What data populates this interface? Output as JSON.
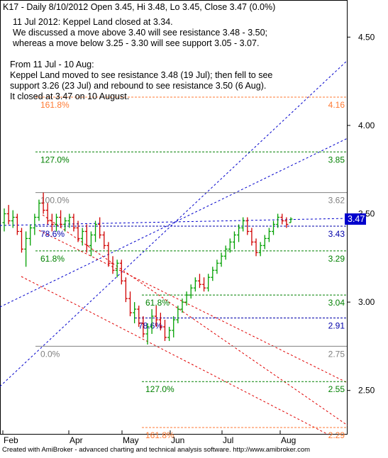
{
  "header": {
    "line": "K17 - Daily 8/10/2012 Open 3.45, Hi 3.48, Lo 3.45, Close 3.47 (0.0%)"
  },
  "notes": [
    "11 Jul 2012: Keppel Land closed at 3.34.",
    "We discussed a move above 3.40 will see resistance 3.48 - 3.50;",
    "whereas a move below 3.25 - 3.30 will see support 3.05 - 3.07.",
    "",
    "From 11 Jul - 10 Aug:",
    "Keppel Land moved to see resistance 3.48 (19 Jul); then fell to see",
    "support 3.26 (23 Jul) and rebound to see resistance 3.50 (6 Aug).",
    "It closed at 3.47 on 10 August."
  ],
  "footer": {
    "text": "Created with AmiBroker - advanced charting and technical analysis software. http://www.amibroker.com"
  },
  "colors": {
    "up": "#00a000",
    "down": "#d00000",
    "blue_channel": "#0000cc",
    "red_channel": "#e00000",
    "fib_orange": "#ff7a33",
    "fib_green": "#008000",
    "fib_blue": "#0000aa",
    "fib_gray": "#808080",
    "price_badge": "#0000cc"
  },
  "chart_data": {
    "type": "candlestick",
    "ticker": "K17",
    "y_ticks": [
      "2.50",
      "3.00",
      "3.50",
      "4.00",
      "4.50"
    ],
    "ylim": [
      2.25,
      4.71
    ],
    "x_tick_labels": [
      "Feb",
      "Apr",
      "May",
      "Jun",
      "Jul",
      "Aug"
    ],
    "last_price_label": "3.47",
    "fib_levels": [
      {
        "label": "161.8%",
        "value": 4.16,
        "value_label": "4.16",
        "color": "orange"
      },
      {
        "label": "127.0%",
        "value": 3.85,
        "value_label": "3.85",
        "color": "green"
      },
      {
        "label": "100.0%",
        "value": 3.62,
        "value_label": "3.62",
        "color": "gray"
      },
      {
        "label": "78.6%",
        "value": 3.43,
        "value_label": "3.43",
        "color": "blue"
      },
      {
        "label": "61.8%",
        "value": 3.29,
        "value_label": "3.29",
        "color": "green"
      },
      {
        "label": "61.8%",
        "value": 3.04,
        "value_label": "3.04",
        "color": "green"
      },
      {
        "label": "78.6%",
        "value": 2.91,
        "value_label": "2.91",
        "color": "blue"
      },
      {
        "label": "0.0%",
        "value": 2.75,
        "value_label": "2.75",
        "color": "gray"
      },
      {
        "label": "127.0%",
        "value": 2.55,
        "value_label": "2.55",
        "color": "green"
      },
      {
        "label": "161.8%",
        "value": 2.29,
        "value_label": "2.29",
        "color": "orange"
      }
    ],
    "ohlc": [
      [
        3.45,
        3.53,
        3.4,
        3.5
      ],
      [
        3.5,
        3.55,
        3.44,
        3.46
      ],
      [
        3.46,
        3.52,
        3.42,
        3.48
      ],
      [
        3.48,
        3.5,
        3.38,
        3.4
      ],
      [
        3.4,
        3.42,
        3.28,
        3.3
      ],
      [
        3.3,
        3.4,
        3.2,
        3.36
      ],
      [
        3.36,
        3.44,
        3.32,
        3.42
      ],
      [
        3.42,
        3.5,
        3.38,
        3.48
      ],
      [
        3.48,
        3.58,
        3.46,
        3.56
      ],
      [
        3.56,
        3.62,
        3.5,
        3.52
      ],
      [
        3.52,
        3.56,
        3.44,
        3.46
      ],
      [
        3.46,
        3.5,
        3.4,
        3.44
      ],
      [
        3.44,
        3.5,
        3.4,
        3.48
      ],
      [
        3.48,
        3.52,
        3.42,
        3.44
      ],
      [
        3.44,
        3.48,
        3.4,
        3.46
      ],
      [
        3.46,
        3.5,
        3.42,
        3.48
      ],
      [
        3.48,
        3.5,
        3.4,
        3.42
      ],
      [
        3.42,
        3.46,
        3.34,
        3.36
      ],
      [
        3.36,
        3.42,
        3.32,
        3.4
      ],
      [
        3.4,
        3.44,
        3.28,
        3.32
      ],
      [
        3.32,
        3.4,
        3.26,
        3.38
      ],
      [
        3.38,
        3.46,
        3.34,
        3.44
      ],
      [
        3.44,
        3.48,
        3.36,
        3.38
      ],
      [
        3.38,
        3.4,
        3.3,
        3.32
      ],
      [
        3.32,
        3.34,
        3.2,
        3.22
      ],
      [
        3.22,
        3.26,
        3.16,
        3.18
      ],
      [
        3.18,
        3.24,
        3.14,
        3.22
      ],
      [
        3.22,
        3.24,
        3.1,
        3.12
      ],
      [
        3.12,
        3.14,
        3.0,
        3.02
      ],
      [
        3.02,
        3.06,
        2.92,
        2.94
      ],
      [
        2.94,
        3.0,
        2.88,
        2.96
      ],
      [
        2.96,
        2.98,
        2.86,
        2.88
      ],
      [
        2.88,
        2.92,
        2.8,
        2.82
      ],
      [
        2.82,
        2.88,
        2.76,
        2.86
      ],
      [
        2.86,
        2.96,
        2.82,
        2.92
      ],
      [
        2.92,
        2.98,
        2.86,
        2.9
      ],
      [
        2.9,
        2.94,
        2.84,
        2.86
      ],
      [
        2.86,
        2.9,
        2.78,
        2.8
      ],
      [
        2.8,
        2.86,
        2.78,
        2.84
      ],
      [
        2.84,
        2.92,
        2.8,
        2.9
      ],
      [
        2.9,
        2.98,
        2.88,
        2.96
      ],
      [
        2.96,
        3.02,
        2.94,
        3.0
      ],
      [
        3.0,
        3.06,
        2.98,
        3.04
      ],
      [
        3.04,
        3.1,
        3.02,
        3.08
      ],
      [
        3.08,
        3.14,
        3.06,
        3.12
      ],
      [
        3.12,
        3.16,
        3.08,
        3.1
      ],
      [
        3.1,
        3.14,
        3.06,
        3.08
      ],
      [
        3.08,
        3.16,
        3.06,
        3.14
      ],
      [
        3.14,
        3.2,
        3.12,
        3.18
      ],
      [
        3.18,
        3.24,
        3.16,
        3.22
      ],
      [
        3.22,
        3.28,
        3.2,
        3.26
      ],
      [
        3.26,
        3.32,
        3.24,
        3.3
      ],
      [
        3.3,
        3.36,
        3.28,
        3.34
      ],
      [
        3.34,
        3.4,
        3.3,
        3.38
      ],
      [
        3.38,
        3.44,
        3.34,
        3.42
      ],
      [
        3.42,
        3.48,
        3.4,
        3.46
      ],
      [
        3.46,
        3.48,
        3.38,
        3.4
      ],
      [
        3.4,
        3.42,
        3.32,
        3.34
      ],
      [
        3.34,
        3.36,
        3.26,
        3.28
      ],
      [
        3.28,
        3.34,
        3.26,
        3.32
      ],
      [
        3.32,
        3.38,
        3.3,
        3.36
      ],
      [
        3.36,
        3.42,
        3.34,
        3.4
      ],
      [
        3.4,
        3.46,
        3.38,
        3.44
      ],
      [
        3.44,
        3.5,
        3.42,
        3.48
      ],
      [
        3.48,
        3.5,
        3.44,
        3.46
      ],
      [
        3.46,
        3.48,
        3.42,
        3.44
      ],
      [
        3.45,
        3.48,
        3.45,
        3.47
      ]
    ]
  }
}
